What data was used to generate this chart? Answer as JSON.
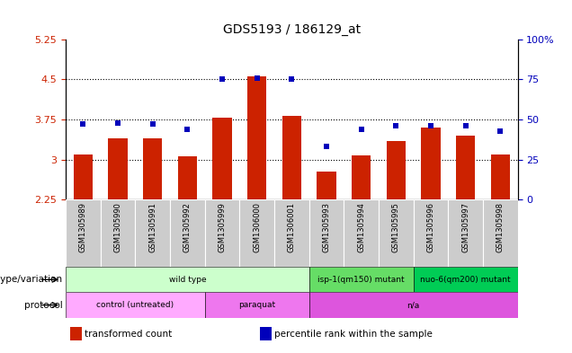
{
  "title": "GDS5193 / 186129_at",
  "samples": [
    "GSM1305989",
    "GSM1305990",
    "GSM1305991",
    "GSM1305992",
    "GSM1305999",
    "GSM1306000",
    "GSM1306001",
    "GSM1305993",
    "GSM1305994",
    "GSM1305995",
    "GSM1305996",
    "GSM1305997",
    "GSM1305998"
  ],
  "transformed_counts": [
    3.1,
    3.4,
    3.4,
    3.07,
    3.78,
    4.55,
    3.82,
    2.77,
    3.08,
    3.35,
    3.6,
    3.45,
    3.1
  ],
  "percentile_ranks": [
    47,
    48,
    47,
    44,
    75,
    76,
    75,
    33,
    44,
    46,
    46,
    46,
    43
  ],
  "bar_color": "#cc2200",
  "dot_color": "#0000bb",
  "ylim_left": [
    2.25,
    5.25
  ],
  "ylim_right": [
    0,
    100
  ],
  "yticks_left": [
    2.25,
    3.0,
    3.75,
    4.5,
    5.25
  ],
  "ytick_labels_left": [
    "2.25",
    "3",
    "3.75",
    "4.5",
    "5.25"
  ],
  "yticks_right": [
    0,
    25,
    50,
    75,
    100
  ],
  "ytick_labels_right": [
    "0",
    "25",
    "50",
    "75",
    "100%"
  ],
  "hlines": [
    3.0,
    3.75,
    4.5
  ],
  "genotype_groups": [
    {
      "label": "wild type",
      "start": 0,
      "end": 7,
      "color": "#ccffcc"
    },
    {
      "label": "isp-1(qm150) mutant",
      "start": 7,
      "end": 10,
      "color": "#66dd66"
    },
    {
      "label": "nuo-6(qm200) mutant",
      "start": 10,
      "end": 13,
      "color": "#00cc55"
    }
  ],
  "protocol_groups": [
    {
      "label": "control (untreated)",
      "start": 0,
      "end": 4,
      "color": "#ffaaff"
    },
    {
      "label": "paraquat",
      "start": 4,
      "end": 7,
      "color": "#ee77ee"
    },
    {
      "label": "n/a",
      "start": 7,
      "end": 13,
      "color": "#dd55dd"
    }
  ],
  "sample_bg": "#cccccc",
  "plot_bg": "#ffffff",
  "bar_width": 0.55
}
